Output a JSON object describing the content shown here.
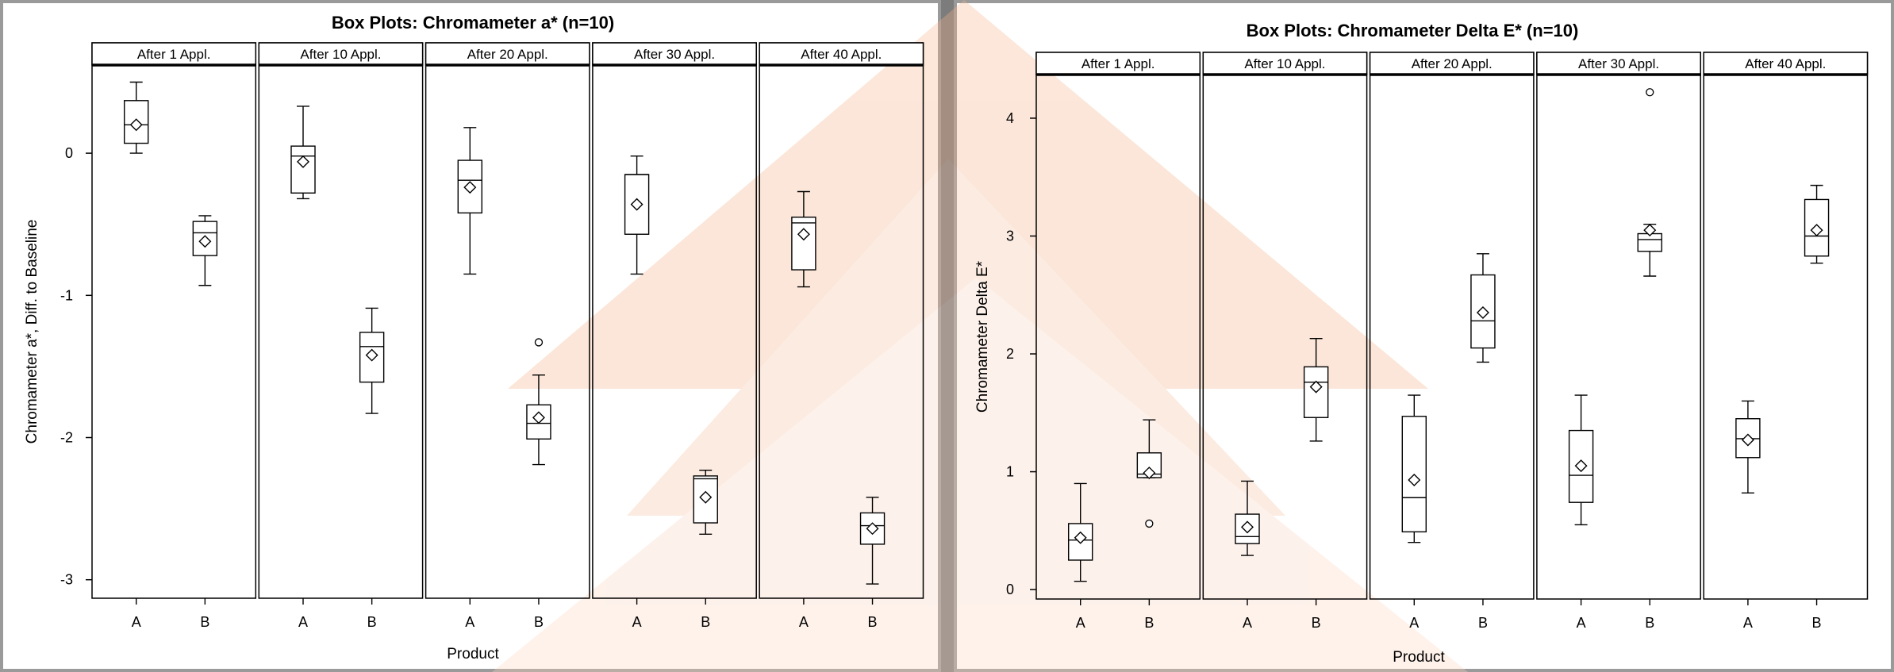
{
  "chart_data": [
    {
      "type": "box",
      "title": "Box Plots: Chromameter a* (n=10)",
      "xlabel": "Product",
      "ylabel": "Chromameter a*, Diff. to Baseline",
      "categories": [
        "A",
        "B"
      ],
      "ylim": [
        -3.13,
        0.62
      ],
      "yticks": [
        0,
        -1,
        -2,
        -3
      ],
      "legend": "none",
      "panels": [
        {
          "label": "After 1 Appl.",
          "boxes": [
            {
              "category": "A",
              "min": 0.0,
              "q1": 0.07,
              "median": 0.2,
              "q3": 0.37,
              "max": 0.5,
              "mean": 0.2,
              "outliers": []
            },
            {
              "category": "B",
              "min": -0.93,
              "q1": -0.72,
              "median": -0.56,
              "q3": -0.48,
              "max": -0.44,
              "mean": -0.62,
              "outliers": []
            }
          ]
        },
        {
          "label": "After 10 Appl.",
          "boxes": [
            {
              "category": "A",
              "min": -0.32,
              "q1": -0.28,
              "median": -0.02,
              "q3": 0.05,
              "max": 0.33,
              "mean": -0.06,
              "outliers": []
            },
            {
              "category": "B",
              "min": -1.83,
              "q1": -1.61,
              "median": -1.36,
              "q3": -1.26,
              "max": -1.09,
              "mean": -1.42,
              "outliers": []
            }
          ]
        },
        {
          "label": "After 20 Appl.",
          "boxes": [
            {
              "category": "A",
              "min": -0.85,
              "q1": -0.42,
              "median": -0.19,
              "q3": -0.05,
              "max": 0.18,
              "mean": -0.24,
              "outliers": []
            },
            {
              "category": "B",
              "min": -2.19,
              "q1": -2.01,
              "median": -1.9,
              "q3": -1.77,
              "max": -1.56,
              "mean": -1.86,
              "outliers": [
                -1.33
              ]
            }
          ]
        },
        {
          "label": "After 30 Appl.",
          "boxes": [
            {
              "category": "A",
              "min": -0.85,
              "q1": -0.57,
              "median": -0.15,
              "q3": -0.15,
              "max": -0.02,
              "mean": -0.36,
              "outliers": []
            },
            {
              "category": "B",
              "min": -2.68,
              "q1": -2.6,
              "median": -2.29,
              "q3": -2.27,
              "max": -2.23,
              "mean": -2.42,
              "outliers": []
            }
          ]
        },
        {
          "label": "After 40 Appl.",
          "boxes": [
            {
              "category": "A",
              "min": -0.94,
              "q1": -0.82,
              "median": -0.49,
              "q3": -0.45,
              "max": -0.27,
              "mean": -0.57,
              "outliers": []
            },
            {
              "category": "B",
              "min": -3.03,
              "q1": -2.75,
              "median": -2.62,
              "q3": -2.53,
              "max": -2.42,
              "mean": -2.64,
              "outliers": []
            }
          ]
        }
      ]
    },
    {
      "type": "box",
      "title": "Box Plots: Chromameter Delta E* (n=10)",
      "xlabel": "Product",
      "ylabel": "Chromameter Delta E*",
      "categories": [
        "A",
        "B"
      ],
      "ylim": [
        -0.08,
        4.37
      ],
      "yticks": [
        4,
        3,
        2,
        1,
        0
      ],
      "legend": "none",
      "panels": [
        {
          "label": "After 1 Appl.",
          "boxes": [
            {
              "category": "A",
              "min": 0.07,
              "q1": 0.25,
              "median": 0.42,
              "q3": 0.56,
              "max": 0.9,
              "mean": 0.44,
              "outliers": []
            },
            {
              "category": "B",
              "min": 0.95,
              "q1": 0.95,
              "median": 0.98,
              "q3": 1.16,
              "max": 1.44,
              "mean": 0.99,
              "outliers": [
                0.56
              ]
            }
          ]
        },
        {
          "label": "After 10 Appl.",
          "boxes": [
            {
              "category": "A",
              "min": 0.29,
              "q1": 0.39,
              "median": 0.45,
              "q3": 0.64,
              "max": 0.92,
              "mean": 0.53,
              "outliers": []
            },
            {
              "category": "B",
              "min": 1.26,
              "q1": 1.46,
              "median": 1.76,
              "q3": 1.89,
              "max": 2.13,
              "mean": 1.72,
              "outliers": []
            }
          ]
        },
        {
          "label": "After 20 Appl.",
          "boxes": [
            {
              "category": "A",
              "min": 0.4,
              "q1": 0.49,
              "median": 0.78,
              "q3": 1.47,
              "max": 1.65,
              "mean": 0.93,
              "outliers": []
            },
            {
              "category": "B",
              "min": 1.93,
              "q1": 2.05,
              "median": 2.28,
              "q3": 2.67,
              "max": 2.85,
              "mean": 2.35,
              "outliers": []
            }
          ]
        },
        {
          "label": "After 30 Appl.",
          "boxes": [
            {
              "category": "A",
              "min": 0.55,
              "q1": 0.74,
              "median": 0.97,
              "q3": 1.35,
              "max": 1.65,
              "mean": 1.05,
              "outliers": []
            },
            {
              "category": "B",
              "min": 2.66,
              "q1": 2.87,
              "median": 2.97,
              "q3": 3.02,
              "max": 3.1,
              "mean": 3.05,
              "outliers": [
                4.22
              ]
            }
          ]
        },
        {
          "label": "After 40 Appl.",
          "boxes": [
            {
              "category": "A",
              "min": 0.82,
              "q1": 1.12,
              "median": 1.28,
              "q3": 1.45,
              "max": 1.6,
              "mean": 1.27,
              "outliers": []
            },
            {
              "category": "B",
              "min": 2.77,
              "q1": 2.83,
              "median": 3.0,
              "q3": 3.31,
              "max": 3.43,
              "mean": 3.05,
              "outliers": []
            }
          ]
        }
      ]
    }
  ]
}
